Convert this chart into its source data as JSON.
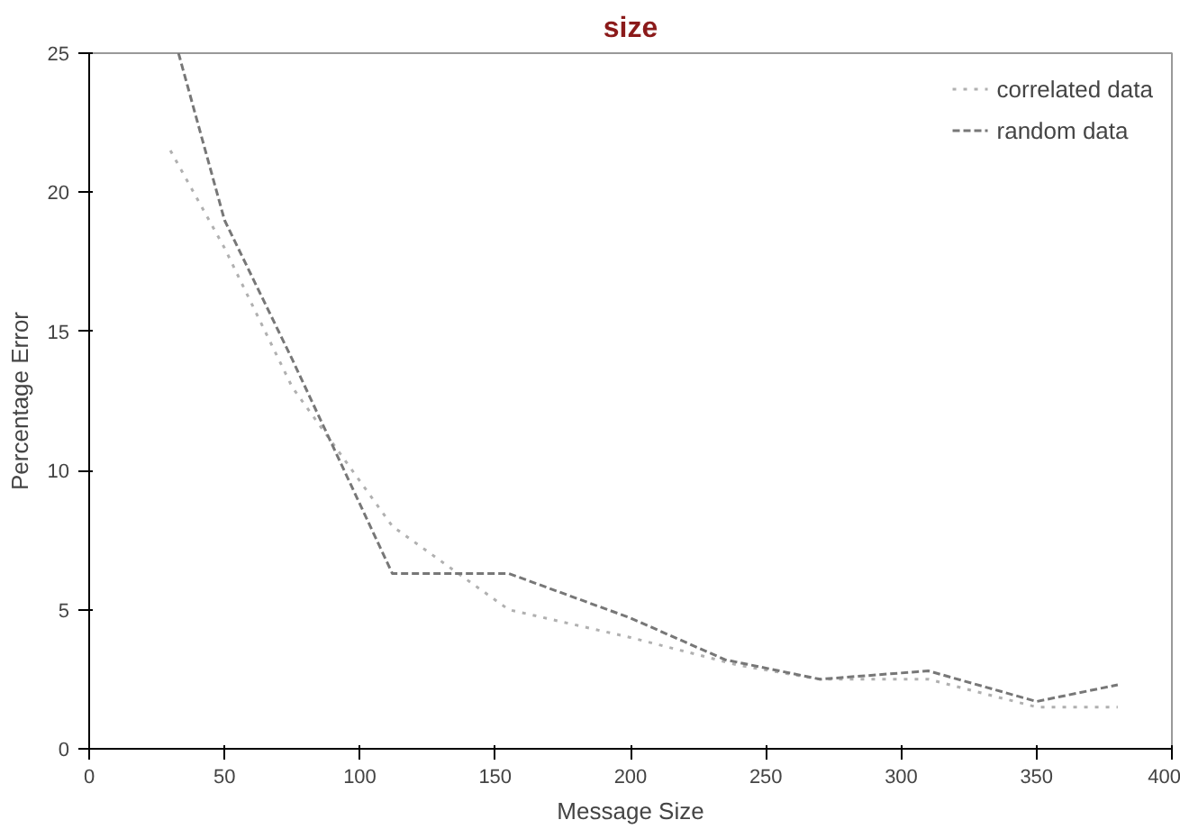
{
  "chart_data": {
    "type": "line",
    "title": "size",
    "xlabel": "Message Size",
    "ylabel": "Percentage Error",
    "series": [
      {
        "name": "correlated data",
        "color": "#b0b0b0",
        "line_style": "dotted",
        "x": [
          30,
          50,
          75,
          112,
          155,
          200,
          240,
          270,
          310,
          350,
          380
        ],
        "values": [
          21.5,
          18,
          13,
          8,
          5,
          4,
          3,
          2.5,
          2.5,
          1.5,
          1.5
        ]
      },
      {
        "name": "random data",
        "color": "#777777",
        "line_style": "dashed",
        "x": [
          33,
          50,
          75,
          112,
          155,
          200,
          235,
          270,
          310,
          350,
          380
        ],
        "values": [
          25,
          19,
          14,
          6.3,
          6.3,
          4.7,
          3.2,
          2.5,
          2.8,
          1.7,
          2.3
        ]
      }
    ],
    "xlim": [
      0,
      400
    ],
    "xticks": [
      0,
      50,
      100,
      150,
      200,
      250,
      300,
      350,
      400
    ],
    "ylim": [
      0,
      25
    ],
    "yticks": [
      0,
      5,
      10,
      15,
      20,
      25
    ],
    "grid": false,
    "legend": "top right",
    "marker": "none"
  }
}
